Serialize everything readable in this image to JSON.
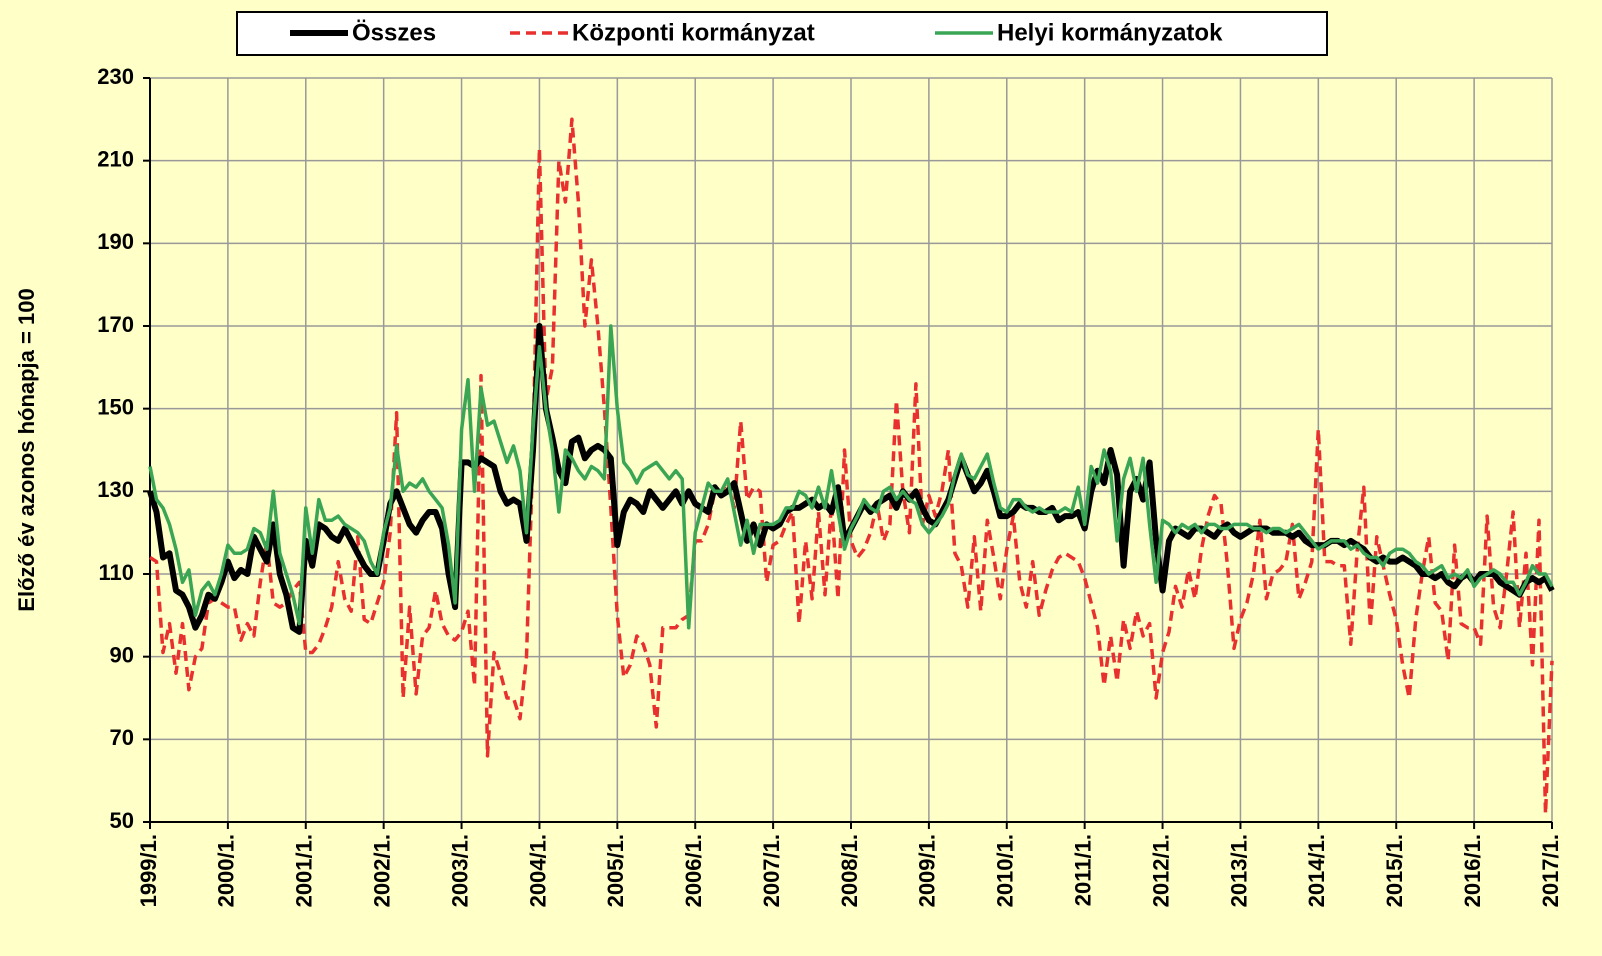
{
  "chart_data": {
    "type": "line",
    "ylabel": "Előző év azonos hónapja = 100",
    "ylim": [
      50,
      230
    ],
    "yticks": [
      50,
      70,
      90,
      110,
      130,
      150,
      170,
      190,
      210,
      230
    ],
    "grid": true,
    "legend": "top",
    "categories": [
      "1999/1.",
      null,
      null,
      null,
      null,
      null,
      null,
      null,
      null,
      null,
      null,
      null,
      "2000/1.",
      null,
      null,
      null,
      null,
      null,
      null,
      null,
      null,
      null,
      null,
      null,
      "2001/1.",
      null,
      null,
      null,
      null,
      null,
      null,
      null,
      null,
      null,
      null,
      null,
      "2002/1.",
      null,
      null,
      null,
      null,
      null,
      null,
      null,
      null,
      null,
      null,
      null,
      "2003/1.",
      null,
      null,
      null,
      null,
      null,
      null,
      null,
      null,
      null,
      null,
      null,
      "2004/1.",
      null,
      null,
      null,
      null,
      null,
      null,
      null,
      null,
      null,
      null,
      null,
      "2005/1.",
      null,
      null,
      null,
      null,
      null,
      null,
      null,
      null,
      null,
      null,
      null,
      "2006/1.",
      null,
      null,
      null,
      null,
      null,
      null,
      null,
      null,
      null,
      null,
      null,
      "2007/1.",
      null,
      null,
      null,
      null,
      null,
      null,
      null,
      null,
      null,
      null,
      null,
      "2008/1.",
      null,
      null,
      null,
      null,
      null,
      null,
      null,
      null,
      null,
      null,
      null,
      "2009/1.",
      null,
      null,
      null,
      null,
      null,
      null,
      null,
      null,
      null,
      null,
      null,
      "2010/1.",
      null,
      null,
      null,
      null,
      null,
      null,
      null,
      null,
      null,
      null,
      null,
      "2011/1.",
      null,
      null,
      null,
      null,
      null,
      null,
      null,
      null,
      null,
      null,
      null,
      "2012/1.",
      null,
      null,
      null,
      null,
      null,
      null,
      null,
      null,
      null,
      null,
      null,
      "2013/1.",
      null,
      null,
      null,
      null,
      null,
      null,
      null,
      null,
      null,
      null,
      null,
      "2014/1.",
      null,
      null,
      null,
      null,
      null,
      null,
      null,
      null,
      null,
      null,
      null,
      "2015/1.",
      null,
      null,
      null,
      null,
      null,
      null,
      null,
      null,
      null,
      null,
      null,
      "2016/1.",
      null,
      null,
      null,
      null,
      null,
      null,
      null,
      null,
      null,
      null,
      null,
      "2017/1."
    ],
    "series": [
      {
        "name": "Összes",
        "color": "#000000",
        "dash": false,
        "width": 6,
        "values": [
          130,
          125,
          114,
          115,
          106,
          105,
          102,
          97,
          100,
          105,
          104,
          108,
          113,
          109,
          111,
          110,
          119,
          116,
          113,
          122,
          110,
          105,
          97,
          96,
          118,
          112,
          122,
          121,
          119,
          118,
          121,
          118,
          115,
          112,
          110,
          110,
          118,
          127,
          130,
          126,
          122,
          120,
          123,
          125,
          125,
          121,
          110,
          102,
          137,
          137,
          136,
          138,
          137,
          136,
          130,
          127,
          128,
          127,
          118,
          140,
          170,
          150,
          143,
          135,
          132,
          142,
          143,
          138,
          140,
          141,
          140,
          138,
          117,
          125,
          128,
          127,
          125,
          130,
          128,
          126,
          128,
          130,
          127,
          130,
          127,
          126,
          125,
          131,
          129,
          130,
          132,
          125,
          118,
          122,
          117,
          122,
          121,
          122,
          125,
          126,
          126,
          127,
          128,
          126,
          127,
          125,
          131,
          118,
          121,
          124,
          127,
          125,
          127,
          128,
          129,
          126,
          130,
          128,
          130,
          126,
          123,
          122,
          125,
          128,
          133,
          138,
          134,
          130,
          132,
          135,
          130,
          124,
          124,
          125,
          127,
          126,
          126,
          125,
          125,
          126,
          123,
          124,
          124,
          125,
          121,
          130,
          135,
          132,
          140,
          134,
          112,
          130,
          133,
          128,
          137,
          118,
          106,
          118,
          121,
          120,
          119,
          121,
          121,
          120,
          119,
          121,
          122,
          120,
          119,
          120,
          121,
          121,
          121,
          120,
          120,
          120,
          119,
          120,
          118,
          117,
          117,
          117,
          118,
          118,
          117,
          118,
          117,
          116,
          114,
          113,
          114,
          113,
          113,
          114,
          113,
          112,
          110,
          110,
          109,
          110,
          108,
          107,
          109,
          110,
          108,
          110,
          110,
          110,
          108,
          107,
          106,
          105,
          108,
          109,
          108,
          109,
          106
        ]
      },
      {
        "name": "Központi kormányzat",
        "color": "#e8312f",
        "dash": true,
        "width": 3.5,
        "values": [
          114,
          113,
          91,
          98,
          86,
          98,
          82,
          90,
          92,
          103,
          104,
          103,
          102,
          102,
          94,
          98,
          95,
          108,
          118,
          103,
          102,
          103,
          106,
          108,
          91,
          91,
          93,
          97,
          102,
          113,
          104,
          101,
          119,
          99,
          98,
          103,
          108,
          120,
          149,
          80,
          102,
          81,
          95,
          97,
          106,
          98,
          95,
          94,
          96,
          101,
          83,
          158,
          66,
          91,
          86,
          80,
          80,
          75,
          90,
          140,
          213,
          152,
          160,
          210,
          200,
          220,
          200,
          170,
          186,
          170,
          150,
          126,
          100,
          85,
          88,
          95,
          93,
          88,
          73,
          97,
          97,
          97,
          99,
          100,
          118,
          118,
          122,
          130,
          130,
          132,
          126,
          147,
          128,
          131,
          130,
          108,
          117,
          118,
          122,
          125,
          98,
          118,
          104,
          125,
          105,
          127,
          104,
          140,
          118,
          114,
          116,
          120,
          127,
          118,
          122,
          152,
          130,
          120,
          156,
          122,
          129,
          124,
          130,
          140,
          115,
          112,
          102,
          119,
          101,
          123,
          114,
          104,
          116,
          124,
          108,
          102,
          113,
          100,
          106,
          111,
          114,
          115,
          114,
          113,
          109,
          103,
          97,
          83,
          95,
          84,
          99,
          92,
          101,
          95,
          98,
          80,
          91,
          96,
          107,
          102,
          111,
          104,
          116,
          124,
          129,
          127,
          112,
          92,
          99,
          103,
          110,
          123,
          104,
          110,
          111,
          113,
          122,
          104,
          108,
          113,
          145,
          113,
          113,
          112,
          112,
          93,
          116,
          131,
          97,
          119,
          112,
          105,
          99,
          88,
          80,
          99,
          110,
          119,
          103,
          101,
          89,
          117,
          98,
          97,
          97,
          93,
          124,
          102,
          97,
          110,
          125,
          97,
          115,
          88,
          123,
          52,
          89
        ]
      },
      {
        "name": "Helyi kormányzatok",
        "color": "#3aa655",
        "dash": false,
        "width": 3.5,
        "values": [
          136,
          128,
          126,
          122,
          116,
          108,
          111,
          100,
          106,
          108,
          105,
          110,
          117,
          115,
          115,
          116,
          121,
          120,
          116,
          130,
          115,
          110,
          105,
          98,
          126,
          115,
          128,
          123,
          123,
          124,
          122,
          121,
          120,
          118,
          113,
          110,
          120,
          126,
          141,
          130,
          132,
          131,
          133,
          130,
          128,
          126,
          117,
          103,
          145,
          157,
          130,
          155,
          146,
          147,
          142,
          137,
          141,
          135,
          120,
          145,
          165,
          150,
          140,
          125,
          140,
          138,
          135,
          133,
          136,
          135,
          133,
          170,
          150,
          137,
          135,
          132,
          135,
          136,
          137,
          135,
          133,
          135,
          133,
          97,
          120,
          126,
          132,
          130,
          130,
          133,
          125,
          117,
          123,
          115,
          122,
          122,
          122,
          123,
          126,
          126,
          130,
          129,
          126,
          131,
          126,
          135,
          125,
          116,
          121,
          124,
          128,
          126,
          125,
          130,
          131,
          128,
          130,
          128,
          127,
          122,
          120,
          122,
          124,
          127,
          134,
          139,
          134,
          133,
          136,
          139,
          132,
          126,
          125,
          128,
          128,
          126,
          125,
          126,
          125,
          125,
          125,
          126,
          125,
          131,
          122,
          136,
          132,
          140,
          135,
          118,
          133,
          138,
          130,
          138,
          122,
          108,
          123,
          122,
          120,
          122,
          121,
          122,
          120,
          122,
          122,
          121,
          121,
          122,
          122,
          122,
          121,
          121,
          120,
          121,
          121,
          120,
          121,
          122,
          120,
          118,
          116,
          117,
          118,
          118,
          118,
          116,
          117,
          115,
          114,
          114,
          112,
          115,
          116,
          116,
          115,
          113,
          112,
          110,
          111,
          112,
          109,
          110,
          109,
          111,
          107,
          109,
          110,
          111,
          110,
          108,
          108,
          105,
          108,
          112,
          110,
          110,
          107
        ]
      }
    ]
  }
}
